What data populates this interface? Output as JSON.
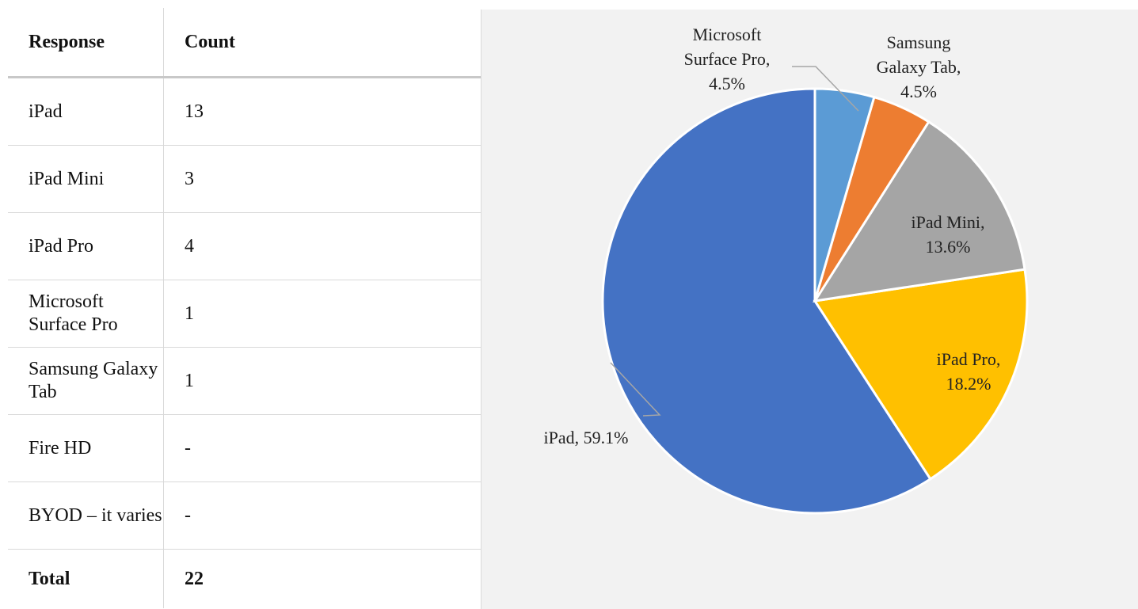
{
  "table": {
    "header": [
      "Response",
      "Count"
    ],
    "rows": [
      [
        "iPad",
        "13"
      ],
      [
        "iPad Mini",
        "3"
      ],
      [
        "iPad Pro",
        "4"
      ],
      [
        "Microsoft Surface Pro",
        "1"
      ],
      [
        "Samsung Galaxy Tab",
        "1"
      ],
      [
        "Fire HD",
        "-"
      ],
      [
        "BYOD – it varies",
        "-"
      ]
    ],
    "total": [
      "Total",
      "22"
    ]
  },
  "chart_data": {
    "type": "pie",
    "values": [
      4.5,
      4.5,
      13.6,
      18.2,
      59.1
    ],
    "value_labels": [
      "Microsoft Surface Pro, 4.5%",
      "Samsung Galaxy Tab, 4.5%",
      "iPad Mini, 13.6%",
      "iPad Pro, 18.2%",
      "iPad, 59.1%"
    ],
    "colors": [
      "#5b9bd5",
      "#ed7d31",
      "#a5a5a5",
      "#ffc000",
      "#4472c4"
    ]
  }
}
